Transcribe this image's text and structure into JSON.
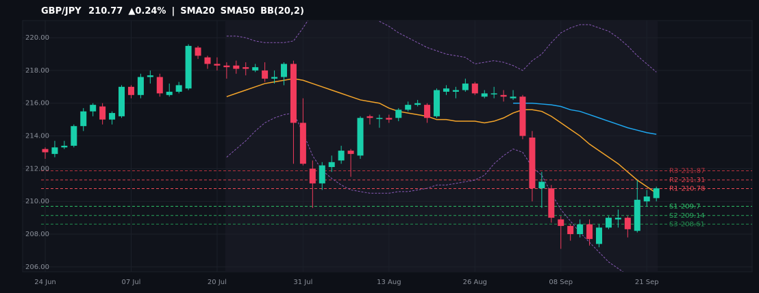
{
  "chart_data": {
    "type": "candlestick",
    "header": {
      "symbol": "GBP/JPY",
      "price": 210.77,
      "change": "▲0.24%",
      "separator": "|"
    },
    "categories": [
      "24 Jun",
      null,
      null,
      null,
      null,
      null,
      null,
      null,
      null,
      "07 Jul",
      null,
      null,
      null,
      null,
      null,
      null,
      null,
      null,
      "20 Jul",
      null,
      null,
      null,
      null,
      null,
      null,
      null,
      null,
      "31 Jul",
      null,
      null,
      null,
      null,
      null,
      null,
      null,
      null,
      "13 Aug",
      null,
      null,
      null,
      null,
      null,
      null,
      null,
      null,
      "26 Aug",
      null,
      null,
      null,
      null,
      null,
      null,
      null,
      null,
      "08 Sep",
      null,
      null,
      null,
      null,
      null,
      null,
      null,
      null,
      "21 Sep",
      null
    ],
    "open": [
      213.2,
      212.9,
      213.3,
      213.4,
      214.6,
      215.5,
      215.8,
      215.0,
      215.2,
      217.0,
      216.5,
      217.6,
      217.6,
      216.5,
      216.7,
      216.9,
      219.4,
      218.8,
      218.4,
      218.3,
      218.3,
      218.2,
      218.0,
      218.0,
      217.5,
      217.6,
      218.4,
      214.8,
      212.0,
      211.1,
      212.1,
      212.5,
      213.1,
      212.8,
      215.2,
      215.1,
      215.1,
      215.1,
      215.6,
      215.9,
      215.9,
      215.2,
      216.7,
      216.7,
      216.8,
      217.2,
      216.4,
      216.6,
      216.5,
      216.3,
      216.4,
      213.9,
      210.8,
      210.8,
      208.9,
      208.5,
      208.0,
      208.6,
      207.4,
      208.4,
      208.9,
      209.0,
      208.2,
      210.0,
      210.2
    ],
    "high": [
      213.3,
      213.7,
      213.7,
      214.7,
      215.7,
      216.0,
      216.0,
      215.5,
      217.1,
      217.1,
      217.8,
      218.0,
      217.8,
      217.2,
      217.3,
      219.6,
      219.5,
      218.9,
      218.8,
      218.5,
      218.6,
      218.5,
      218.4,
      218.5,
      218.0,
      218.5,
      218.6,
      216.3,
      212.5,
      212.4,
      212.8,
      213.4,
      213.2,
      215.2,
      215.3,
      215.3,
      215.3,
      215.7,
      216.1,
      216.2,
      216.0,
      216.9,
      217.1,
      217.0,
      217.5,
      217.3,
      216.8,
      217.0,
      216.8,
      216.8,
      216.5,
      214.3,
      211.8,
      211.0,
      209.1,
      208.6,
      208.9,
      208.9,
      208.6,
      209.1,
      209.5,
      209.1,
      211.3,
      210.7,
      210.9
    ],
    "low": [
      212.6,
      212.7,
      213.2,
      213.3,
      214.3,
      215.2,
      214.7,
      214.7,
      215.1,
      216.3,
      216.3,
      217.2,
      216.4,
      216.4,
      216.6,
      216.8,
      218.7,
      218.1,
      218.0,
      217.5,
      217.8,
      217.7,
      217.9,
      217.3,
      217.2,
      217.1,
      212.3,
      212.2,
      209.6,
      210.7,
      211.8,
      212.3,
      211.5,
      212.6,
      214.7,
      214.5,
      214.8,
      214.9,
      215.5,
      215.8,
      214.8,
      215.1,
      216.5,
      216.3,
      216.7,
      216.5,
      216.3,
      216.3,
      216.1,
      216.2,
      213.8,
      210.0,
      209.6,
      208.7,
      207.1,
      207.6,
      207.8,
      207.3,
      207.2,
      208.3,
      208.4,
      207.8,
      208.1,
      209.7,
      210.0
    ],
    "close": [
      213.0,
      213.3,
      213.4,
      214.6,
      215.5,
      215.9,
      215.0,
      215.4,
      217.0,
      216.5,
      217.6,
      217.7,
      216.6,
      216.7,
      217.1,
      219.5,
      218.9,
      218.4,
      218.3,
      218.2,
      218.1,
      218.1,
      218.2,
      217.5,
      217.6,
      218.4,
      214.8,
      212.3,
      211.1,
      212.2,
      212.4,
      213.1,
      212.9,
      215.1,
      215.1,
      215.1,
      215.0,
      215.6,
      215.9,
      216.0,
      215.1,
      216.8,
      216.9,
      216.8,
      217.2,
      216.6,
      216.6,
      216.6,
      216.4,
      216.4,
      214.0,
      210.8,
      211.2,
      209.0,
      208.5,
      208.0,
      208.6,
      207.7,
      208.4,
      209.0,
      209.0,
      208.3,
      210.1,
      210.3,
      210.8
    ],
    "up_color": "#19cfab",
    "down_color": "#f23b5c",
    "overlays": [
      {
        "name": "SMA20",
        "color": "#f5a52a",
        "values": [
          null,
          null,
          null,
          null,
          null,
          null,
          null,
          null,
          null,
          null,
          null,
          null,
          null,
          null,
          null,
          null,
          null,
          null,
          null,
          216.4,
          216.6,
          216.8,
          217.0,
          217.2,
          217.3,
          217.4,
          217.5,
          217.4,
          217.2,
          217.0,
          216.8,
          216.6,
          216.4,
          216.2,
          216.1,
          216.0,
          215.7,
          215.5,
          215.4,
          215.3,
          215.2,
          215.0,
          215.0,
          214.9,
          214.9,
          214.9,
          214.8,
          214.9,
          215.1,
          215.4,
          215.6,
          215.6,
          215.5,
          215.2,
          214.8,
          214.4,
          214.0,
          213.5,
          213.1,
          212.7,
          212.3,
          211.8,
          211.3,
          210.9,
          210.5
        ]
      },
      {
        "name": "SMA50",
        "color": "#1ea7f0",
        "values": [
          null,
          null,
          null,
          null,
          null,
          null,
          null,
          null,
          null,
          null,
          null,
          null,
          null,
          null,
          null,
          null,
          null,
          null,
          null,
          null,
          null,
          null,
          null,
          null,
          null,
          null,
          null,
          null,
          null,
          null,
          null,
          null,
          null,
          null,
          null,
          null,
          null,
          null,
          null,
          null,
          null,
          null,
          null,
          null,
          null,
          null,
          null,
          null,
          null,
          216.0,
          216.0,
          216.0,
          215.95,
          215.9,
          215.8,
          215.6,
          215.5,
          215.3,
          215.1,
          214.9,
          214.7,
          214.5,
          214.35,
          214.2,
          214.1
        ]
      },
      {
        "name": "BB(20,2)",
        "color": "#8a5ab8",
        "dashed": true,
        "upper": [
          null,
          null,
          null,
          null,
          null,
          null,
          null,
          null,
          null,
          null,
          null,
          null,
          null,
          null,
          null,
          null,
          null,
          null,
          null,
          220.1,
          220.1,
          220.0,
          219.8,
          219.7,
          219.7,
          219.7,
          219.8,
          220.6,
          221.5,
          222.3,
          222.8,
          223.0,
          222.8,
          222.3,
          221.5,
          221.0,
          220.7,
          220.3,
          220.0,
          219.7,
          219.4,
          219.2,
          219.0,
          218.9,
          218.8,
          218.4,
          218.5,
          218.6,
          218.5,
          218.3,
          218.0,
          218.6,
          219.0,
          219.7,
          220.3,
          220.6,
          220.8,
          220.8,
          220.6,
          220.4,
          220.0,
          219.5,
          218.9,
          218.4,
          217.9
        ],
        "lower": [
          null,
          null,
          null,
          null,
          null,
          null,
          null,
          null,
          null,
          null,
          null,
          null,
          null,
          null,
          null,
          null,
          null,
          null,
          null,
          212.7,
          213.2,
          213.7,
          214.3,
          214.8,
          215.1,
          215.3,
          215.4,
          214.2,
          212.8,
          211.9,
          211.4,
          211.0,
          210.7,
          210.6,
          210.5,
          210.5,
          210.5,
          210.6,
          210.6,
          210.7,
          210.8,
          211.0,
          211.0,
          211.1,
          211.2,
          211.3,
          211.6,
          212.3,
          212.8,
          213.2,
          213.0,
          212.1,
          211.6,
          210.5,
          209.5,
          208.8,
          208.1,
          207.5,
          206.9,
          206.3,
          205.9,
          205.5,
          205.0,
          204.6,
          204.2
        ]
      }
    ],
    "levels": [
      {
        "name": "R3",
        "value": 211.87,
        "color": "#b8333f"
      },
      {
        "name": "R2",
        "value": 211.31,
        "color": "#d8404c"
      },
      {
        "name": "R1",
        "value": 210.78,
        "color": "#f04a55"
      },
      {
        "name": "S1",
        "value": 209.7,
        "color": "#2ec46a"
      },
      {
        "name": "S2",
        "value": 209.14,
        "color": "#28a85c"
      },
      {
        "name": "S3",
        "value": 208.61,
        "color": "#238f50"
      }
    ],
    "ylim": [
      205.7,
      221.05
    ],
    "yticks": [
      {
        "value": 206,
        "label": "206.00"
      },
      {
        "value": 208,
        "label": "208.00"
      },
      {
        "value": 210,
        "label": "210.00"
      },
      {
        "value": 212,
        "label": "212.00"
      },
      {
        "value": 214,
        "label": "214.00"
      },
      {
        "value": 216,
        "label": "216.00"
      },
      {
        "value": 218,
        "label": "218.00"
      },
      {
        "value": 220,
        "label": "220.00"
      }
    ],
    "grid": true
  }
}
